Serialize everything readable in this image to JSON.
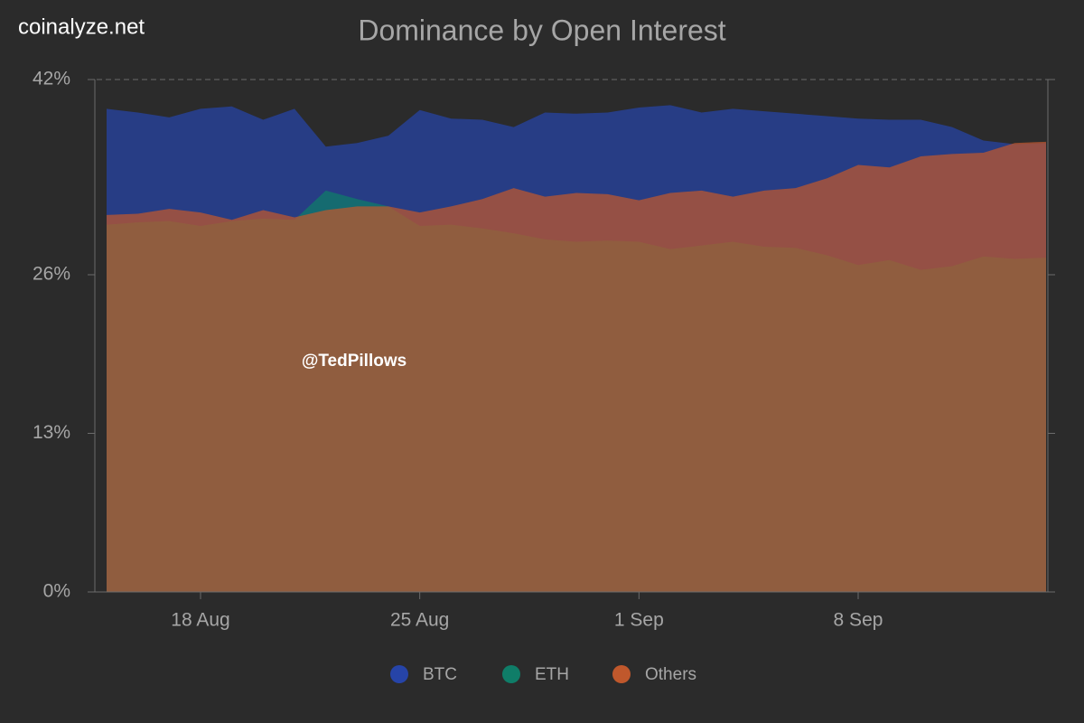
{
  "chart_data": {
    "type": "area",
    "title": "Dominance by Open Interest",
    "annotations": [
      "coinalyze.net",
      "@TedPillows"
    ],
    "categories": [
      null,
      null,
      null,
      "18 Aug",
      null,
      null,
      null,
      null,
      null,
      null,
      "25 Aug",
      null,
      null,
      null,
      null,
      null,
      null,
      "1 Sep",
      null,
      null,
      null,
      null,
      null,
      null,
      "8 Sep",
      null,
      null,
      null,
      null,
      null,
      null
    ],
    "series": [
      {
        "name": "BTC",
        "color": "#2644a8",
        "values": [
          39.6,
          39.3,
          38.9,
          39.6,
          39.8,
          38.7,
          39.6,
          36.5,
          36.8,
          37.4,
          39.5,
          38.8,
          38.7,
          38.1,
          39.3,
          39.2,
          39.3,
          39.7,
          39.9,
          39.3,
          39.6,
          39.4,
          39.2,
          39.0,
          38.8,
          38.7,
          38.7,
          38.1,
          37.0,
          36.7,
          36.8
        ]
      },
      {
        "name": "ETH",
        "color": "#0f7d68",
        "values": [
          30.1,
          30.3,
          30.4,
          30.0,
          30.4,
          30.6,
          30.5,
          32.9,
          32.2,
          31.6,
          30.0,
          30.1,
          29.8,
          29.4,
          28.9,
          28.7,
          28.8,
          28.7,
          28.1,
          28.4,
          28.7,
          28.3,
          28.2,
          27.6,
          26.8,
          27.2,
          26.4,
          26.7,
          27.5,
          27.3,
          27.4
        ]
      },
      {
        "name": "Others",
        "color": "#c0582c",
        "values": [
          30.9,
          31.0,
          31.4,
          31.1,
          30.5,
          31.3,
          30.7,
          31.3,
          31.6,
          31.6,
          31.1,
          31.6,
          32.2,
          33.1,
          32.4,
          32.7,
          32.6,
          32.1,
          32.7,
          32.9,
          32.4,
          32.9,
          33.1,
          33.9,
          35.0,
          34.8,
          35.7,
          35.9,
          36.0,
          36.8,
          36.9
        ]
      }
    ],
    "ylim": [
      0,
      42
    ],
    "yticks": [
      {
        "value": 0,
        "label": "0%"
      },
      {
        "value": 13,
        "label": "13%"
      },
      {
        "value": 26,
        "label": "26%"
      },
      {
        "value": 42,
        "label": "42%"
      }
    ]
  }
}
